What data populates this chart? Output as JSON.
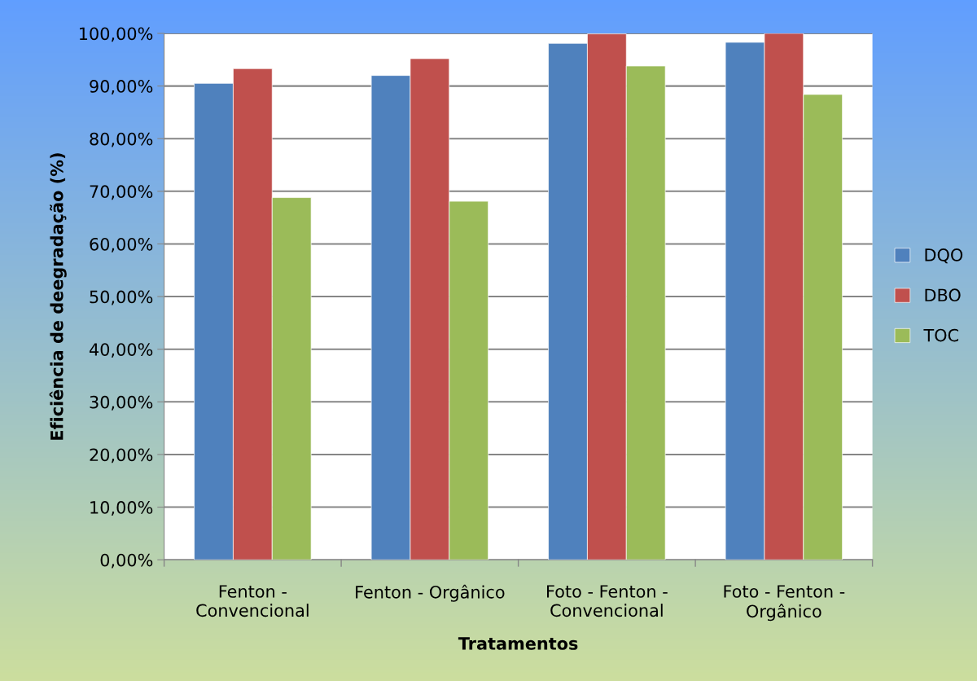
{
  "chart_data": {
    "type": "bar",
    "xlabel": "Tratamentos",
    "ylabel": "Eficiência de deegradação (%)",
    "categories": [
      "Fenton -\nConvencional",
      "Fenton - Orgânico",
      "Foto - Fenton -\nConvencional",
      "Foto - Fenton -\nOrgânico"
    ],
    "series": [
      {
        "name": "DQO",
        "color": "#4f81bd",
        "values": [
          90.5,
          92.0,
          98.1,
          98.3
        ]
      },
      {
        "name": "DBO",
        "color": "#c0504d",
        "values": [
          93.3,
          95.2,
          99.9,
          100.0
        ]
      },
      {
        "name": "TOC",
        "color": "#9bbb59",
        "values": [
          68.8,
          68.1,
          93.8,
          88.4
        ]
      }
    ],
    "ylim": [
      0,
      100
    ],
    "yticks": [
      {
        "value": 0,
        "label": "0,00%"
      },
      {
        "value": 10,
        "label": "10,00%"
      },
      {
        "value": 20,
        "label": "20,00%"
      },
      {
        "value": 30,
        "label": "30,00%"
      },
      {
        "value": 40,
        "label": "40,00%"
      },
      {
        "value": 50,
        "label": "50,00%"
      },
      {
        "value": 60,
        "label": "60,00%"
      },
      {
        "value": 70,
        "label": "70,00%"
      },
      {
        "value": 80,
        "label": "80,00%"
      },
      {
        "value": 90,
        "label": "90,00%"
      },
      {
        "value": 100,
        "label": "100,00%"
      }
    ],
    "grid": "y",
    "legend": "right"
  }
}
